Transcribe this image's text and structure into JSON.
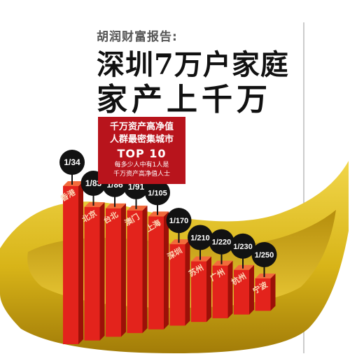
{
  "header": {
    "kicker": "胡润财富报告:",
    "headline_line1": "深圳7万户家庭",
    "headline_line2": "家产上千万"
  },
  "legend_box": {
    "line1": "千万资产高净值",
    "line2": "人群最密集城市",
    "line3": "TOP 10",
    "line4": "每多少人中有1人是",
    "line5": "千万资产高净值人士"
  },
  "colors": {
    "bar_front": "#e3231c",
    "bar_side": "#9c1008",
    "bar_top": "#f26a3b",
    "bubble": "#121212",
    "gold": "#d8b418",
    "legend_red": "#b8141c"
  },
  "chart_data": {
    "type": "bar",
    "title": "千万资产高净值人群最密集城市 TOP 10",
    "subtitle": "每多少人中有1人是千万资产高净值人士",
    "categories": [
      "香港",
      "北京",
      "台北",
      "澳门",
      "上海",
      "深圳",
      "苏州",
      "广州",
      "杭州",
      "宁波"
    ],
    "value_labels": [
      "1/34",
      "1/83",
      "1/86",
      "1/91",
      "1/105",
      "1/170",
      "1/210",
      "1/220",
      "1/230",
      "1/250"
    ],
    "values": [
      34,
      83,
      86,
      91,
      105,
      170,
      210,
      220,
      230,
      250
    ],
    "legend": "none",
    "grid": false
  }
}
